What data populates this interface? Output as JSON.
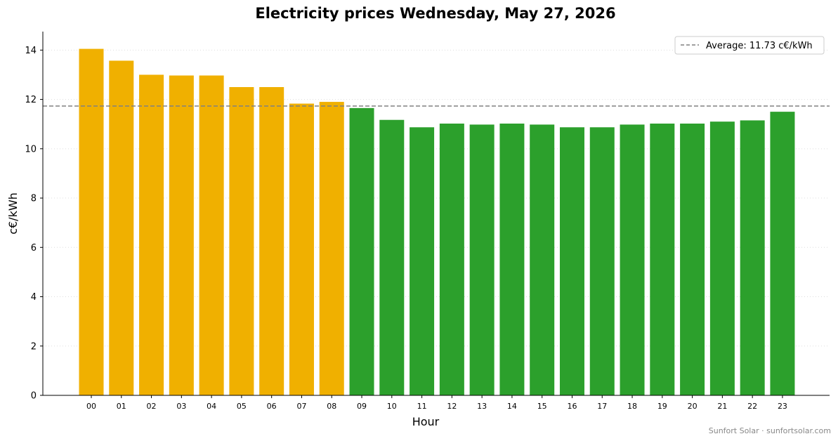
{
  "chart_data": {
    "type": "bar",
    "title": "Electricity prices Wednesday, May 27, 2026",
    "xlabel": "Hour",
    "ylabel": "c€/kWh",
    "ylim": [
      0,
      14.75
    ],
    "yticks": [
      0,
      2,
      4,
      6,
      8,
      10,
      12,
      14
    ],
    "grid": "horizontal dotted",
    "categories": [
      "00",
      "01",
      "02",
      "03",
      "04",
      "05",
      "06",
      "07",
      "08",
      "09",
      "10",
      "11",
      "12",
      "13",
      "14",
      "15",
      "16",
      "17",
      "18",
      "19",
      "20",
      "21",
      "22",
      "23"
    ],
    "values": [
      14.05,
      13.57,
      13.0,
      12.97,
      12.97,
      12.5,
      12.5,
      11.83,
      11.9,
      11.65,
      11.17,
      10.87,
      11.02,
      10.98,
      11.02,
      10.98,
      10.87,
      10.87,
      10.98,
      11.02,
      11.02,
      11.1,
      11.15,
      11.5
    ],
    "bar_colors": [
      "#f0b000",
      "#f0b000",
      "#f0b000",
      "#f0b000",
      "#f0b000",
      "#f0b000",
      "#f0b000",
      "#f0b000",
      "#f0b000",
      "#2ca02c",
      "#2ca02c",
      "#2ca02c",
      "#2ca02c",
      "#2ca02c",
      "#2ca02c",
      "#2ca02c",
      "#2ca02c",
      "#2ca02c",
      "#2ca02c",
      "#2ca02c",
      "#2ca02c",
      "#2ca02c",
      "#2ca02c",
      "#2ca02c"
    ],
    "average": {
      "value": 11.73,
      "label": "Average: 11.73 c€/kWh",
      "color": "#808080"
    },
    "legend_position": "top-right"
  },
  "credit": "Sunfort Solar · sunfortsolar.com"
}
